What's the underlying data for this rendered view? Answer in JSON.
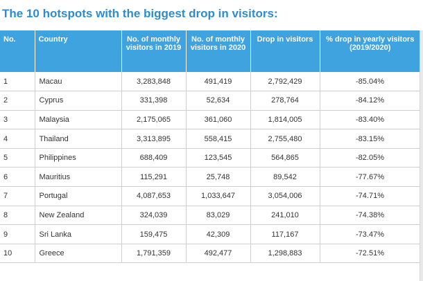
{
  "title": "The 10 hotspots with the biggest drop in visitors:",
  "table": {
    "headers": [
      "No.",
      "Country",
      "No. of monthly visitors in 2019",
      "No. of monthly visitors in 2020",
      "Drop in visitors",
      "% drop in yearly visitors (2019/2020)"
    ],
    "rows": [
      [
        "1",
        "Macau",
        "3,283,848",
        "491,419",
        "2,792,429",
        "-85.04%"
      ],
      [
        "2",
        "Cyprus",
        "331,398",
        "52,634",
        "278,764",
        "-84.12%"
      ],
      [
        "3",
        "Malaysia",
        "2,175,065",
        "361,060",
        "1,814,005",
        "-83.40%"
      ],
      [
        "4",
        "Thailand",
        "3,313,895",
        "558,415",
        "2,755,480",
        "-83.15%"
      ],
      [
        "5",
        "Philippines",
        "688,409",
        "123,545",
        "564,865",
        "-82.05%"
      ],
      [
        "6",
        "Mauritius",
        "115,291",
        "25,748",
        "89,542",
        "-77.67%"
      ],
      [
        "7",
        "Portugal",
        "4,087,653",
        "1,033,647",
        "3,054,006",
        "-74.71%"
      ],
      [
        "8",
        "New Zealand",
        "324,039",
        "83,029",
        "241,010",
        "-74.38%"
      ],
      [
        "9",
        "Sri Lanka",
        "159,475",
        "42,309",
        "117,167",
        "-73.47%"
      ],
      [
        "10",
        "Greece",
        "1,791,359",
        "492,477",
        "1,298,883",
        "-72.51%"
      ]
    ]
  },
  "colors": {
    "title": "#2f8ccc",
    "header_background": "#3ea3de",
    "header_text": "#ffffff",
    "grid_lines": "#cfcfcf"
  }
}
